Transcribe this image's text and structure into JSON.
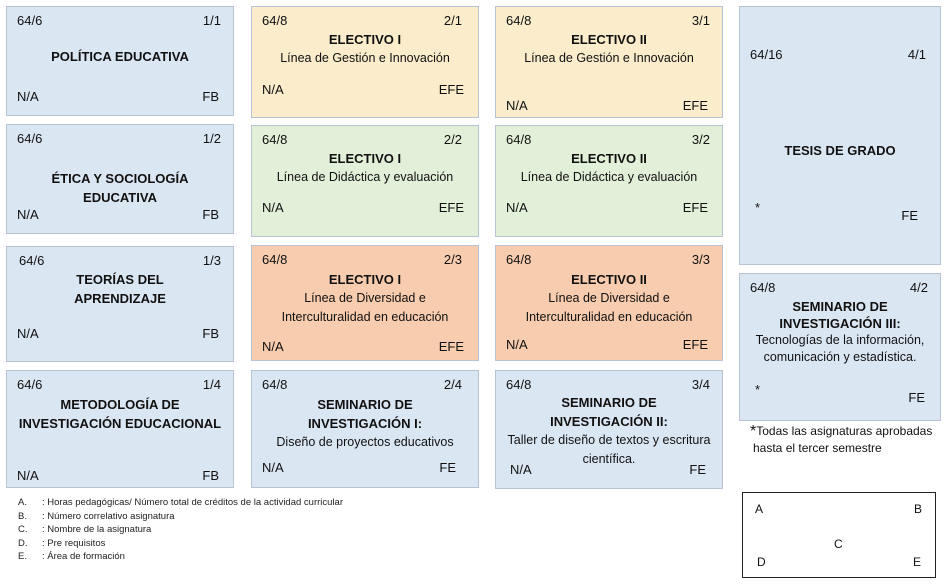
{
  "cards": {
    "c11": {
      "hours": "64/6",
      "number": "1/1",
      "title1": "POLÍTICA EDUCATIVA",
      "req": "N/A",
      "area": "FB"
    },
    "c12": {
      "hours": "64/6",
      "number": "1/2",
      "title1": "ÉTICA Y SOCIOLOGÍA",
      "title2": "EDUCATIVA",
      "req": "N/A",
      "area": "FB"
    },
    "c13": {
      "hours": "64/6",
      "number": "1/3",
      "title1": "TEORÍAS DEL",
      "title2": "APRENDIZAJE",
      "req": "N/A",
      "area": "FB"
    },
    "c14": {
      "hours": "64/6",
      "number": "1/4",
      "title1": "METODOLOGÍA DE",
      "title2": "INVESTIGACIÓN EDUCACIONAL",
      "req": "N/A",
      "area": "FB"
    },
    "c21": {
      "hours": "64/8",
      "number": "2/1",
      "title1": "ELECTIVO I",
      "sub1": "Línea de Gestión e Innovación",
      "req": "N/A",
      "area": "EFE"
    },
    "c22": {
      "hours": "64/8",
      "number": "2/2",
      "title1": "ELECTIVO I",
      "sub1": "Línea de Didáctica y evaluación",
      "req": "N/A",
      "area": "EFE"
    },
    "c23": {
      "hours": "64/8",
      "number": "2/3",
      "title1": "ELECTIVO I",
      "sub1": "Línea de Diversidad e",
      "sub2": "Interculturalidad en educación",
      "req": "N/A",
      "area": "EFE"
    },
    "c24": {
      "hours": "64/8",
      "number": "2/4",
      "title1": "SEMINARIO DE",
      "title2": "INVESTIGACIÓN I:",
      "sub1": "Diseño de proyectos educativos",
      "req": "N/A",
      "area": "FE"
    },
    "c31": {
      "hours": "64/8",
      "number": "3/1",
      "title1": "ELECTIVO II",
      "sub1": "Línea de Gestión e Innovación",
      "req": "N/A",
      "area": "EFE"
    },
    "c32": {
      "hours": "64/8",
      "number": "3/2",
      "title1": "ELECTIVO II",
      "sub1": "Línea de Didáctica y evaluación",
      "req": "N/A",
      "area": "EFE"
    },
    "c33": {
      "hours": "64/8",
      "number": "3/3",
      "title1": "ELECTIVO II",
      "sub1": "Línea de Diversidad e",
      "sub2": "Interculturalidad en educación",
      "req": "N/A",
      "area": "EFE"
    },
    "c34": {
      "hours": "64/8",
      "number": "3/4",
      "title1": "SEMINARIO DE",
      "title2": "INVESTIGACIÓN II:",
      "sub1": "Taller de diseño de textos y escritura",
      "sub2": "científica.",
      "req": "N/A",
      "area": "FE"
    },
    "c41": {
      "hours": "64/16",
      "number": "4/1",
      "title1": "TESIS DE GRADO",
      "req": "*",
      "area": "FE"
    },
    "c42": {
      "hours": "64/8",
      "number": "4/2",
      "title1": "SEMINARIO DE",
      "title2": "INVESTIGACIÓN III:",
      "sub1": "Tecnologías de la información,",
      "sub2": "comunicación y estadística.",
      "req": "*",
      "area": "FE"
    }
  },
  "note": {
    "star": "*",
    "line1": "Todas las asignaturas aprobadas",
    "line2": "hasta el tercer semestre"
  },
  "legend": [
    {
      "key": "A.",
      "text": ": Horas pedagógicas/ Número total de créditos de la actividad curricular"
    },
    {
      "key": "B.",
      "text": ": Número correlativo asignatura"
    },
    {
      "key": "C.",
      "text": ": Nombre de la asignatura"
    },
    {
      "key": "D.",
      "text": ": Pre requisitos"
    },
    {
      "key": "E.",
      "text": ": Área de formación"
    }
  ],
  "keybox": {
    "a": "A",
    "b": "B",
    "c": "C",
    "d": "D",
    "e": "E"
  },
  "colors": {
    "blue": "#dbe6f3",
    "yellow": "#fbeccb",
    "green": "#e2f0d9",
    "orange": "#f8ccaf"
  }
}
